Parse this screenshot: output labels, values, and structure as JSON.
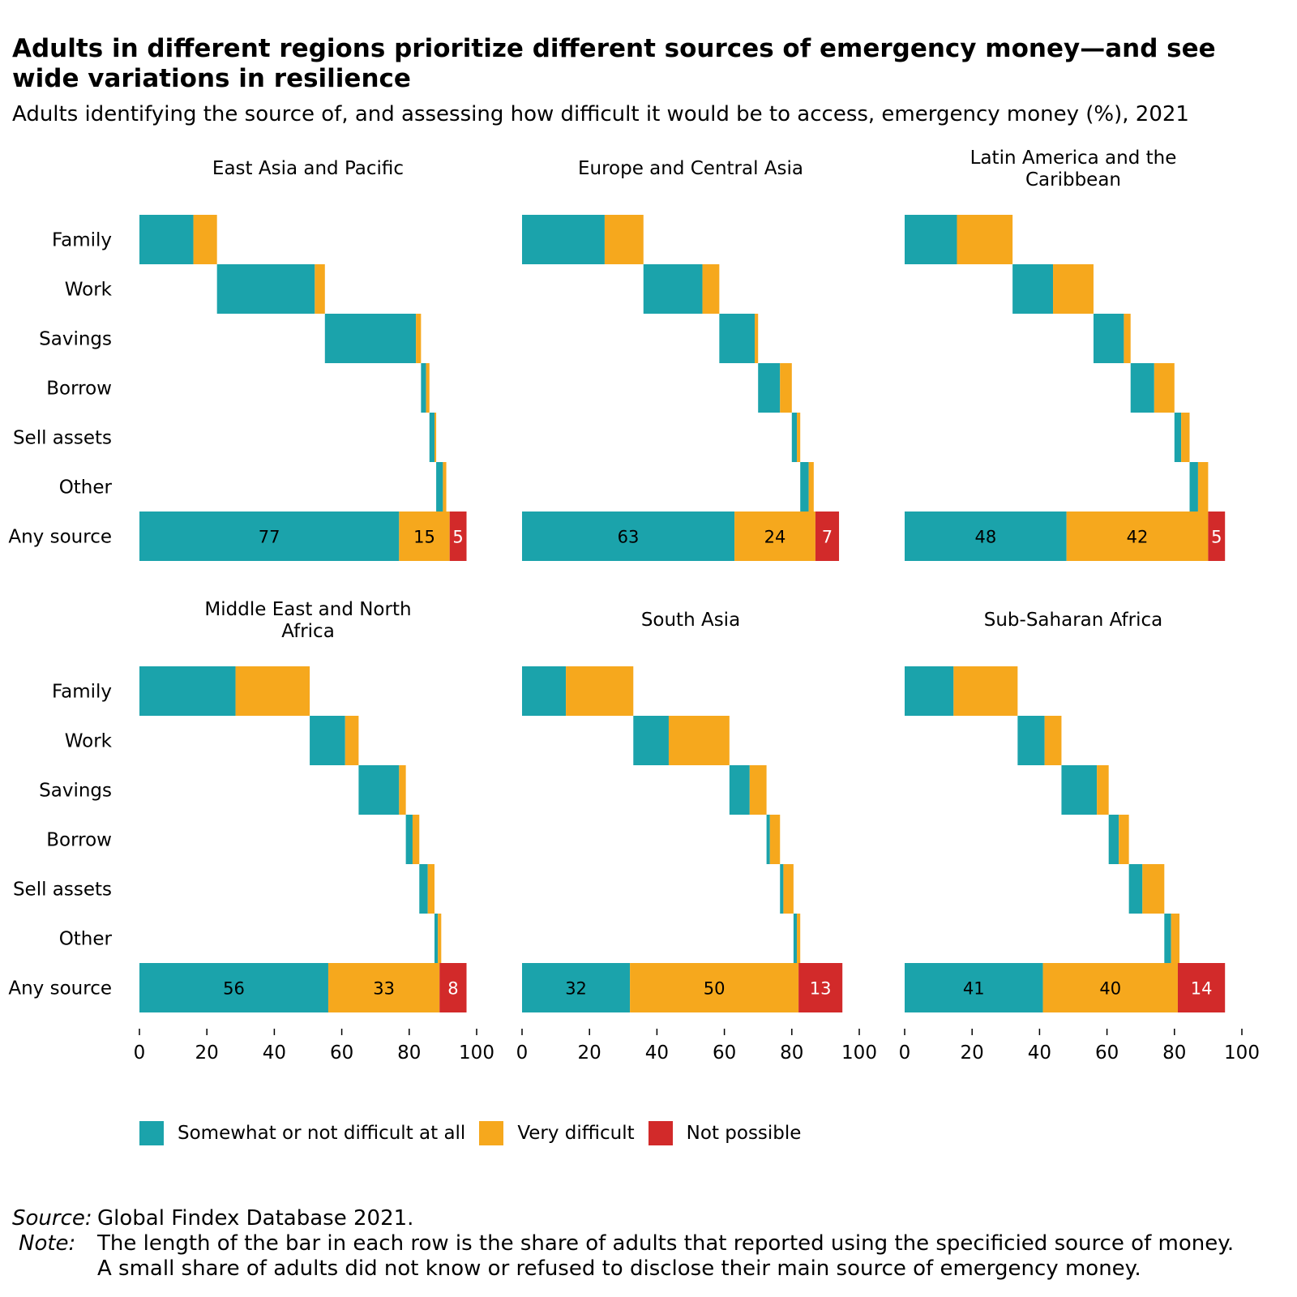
{
  "title": "Adults in different regions prioritize different sources of emergency money—and see wide variations in resilience",
  "subtitle": "Adults identifying the source of, and assessing how difficult it would be to access, emergency money (%), 2021",
  "legend": [
    {
      "label": "Somewhat or not difficult at all",
      "color": "#1ba3ab"
    },
    {
      "label": "Very difficult",
      "color": "#f6a81d"
    },
    {
      "label": "Not possible",
      "color": "#d22a2a"
    }
  ],
  "footer": {
    "source_label": "Source:",
    "source_text": "Global Findex Database 2021.",
    "note_label": "Note:",
    "note_lines": [
      "The length of the bar in each row is the share of adults that reported using the specificied source of money.",
      "A small share of adults did not know or refused to disclose their main source of emergency money."
    ]
  },
  "chart_data": {
    "type": "bar",
    "orientation": "horizontal",
    "stacking": "waterfall",
    "categories": [
      "Family",
      "Work",
      "Savings",
      "Borrow",
      "Sell assets",
      "Other",
      "Any source"
    ],
    "series_names": [
      "Somewhat or not difficult at all",
      "Very difficult",
      "Not possible"
    ],
    "xlim": [
      0,
      100
    ],
    "xticks": [
      0,
      20,
      40,
      60,
      80,
      100
    ],
    "grid": false,
    "legend_position": "bottom",
    "panels": [
      {
        "title": "East Asia and Pacific",
        "rows": [
          [
            16,
            7,
            0
          ],
          [
            29,
            3,
            0
          ],
          [
            27,
            1.5,
            0
          ],
          [
            1.5,
            1,
            0
          ],
          [
            1.5,
            0.5,
            0
          ],
          [
            2,
            1,
            0
          ],
          [
            77,
            15,
            5
          ]
        ],
        "labels": [
          "77",
          "15",
          "5"
        ]
      },
      {
        "title": "Europe and Central Asia",
        "rows": [
          [
            24.5,
            11.5,
            0
          ],
          [
            17.5,
            5,
            0
          ],
          [
            10.5,
            1,
            0
          ],
          [
            6.5,
            3.5,
            0
          ],
          [
            1.5,
            1,
            0
          ],
          [
            2.5,
            1.5,
            0
          ],
          [
            63,
            24,
            7
          ]
        ],
        "labels": [
          "63",
          "24",
          "7"
        ]
      },
      {
        "title": "Latin America and the Caribbean",
        "rows": [
          [
            15.5,
            16.5,
            0
          ],
          [
            12,
            12,
            0
          ],
          [
            9,
            2,
            0
          ],
          [
            7,
            6,
            0
          ],
          [
            2,
            2.5,
            0
          ],
          [
            2.5,
            3,
            0
          ],
          [
            48,
            42,
            5
          ]
        ],
        "labels": [
          "48",
          "42",
          "5"
        ]
      },
      {
        "title": "Middle East and North Africa",
        "rows": [
          [
            28.5,
            22,
            0
          ],
          [
            10.5,
            4,
            0
          ],
          [
            12,
            2,
            0
          ],
          [
            2,
            2,
            0
          ],
          [
            2.5,
            2,
            0
          ],
          [
            1,
            1,
            0
          ],
          [
            56,
            33,
            8
          ]
        ],
        "labels": [
          "56",
          "33",
          "8"
        ]
      },
      {
        "title": "South Asia",
        "rows": [
          [
            13,
            20,
            0
          ],
          [
            10.5,
            18,
            0
          ],
          [
            6,
            5,
            0
          ],
          [
            1,
            3,
            0
          ],
          [
            1,
            3,
            0
          ],
          [
            1,
            1,
            0
          ],
          [
            32,
            50,
            13
          ]
        ],
        "labels": [
          "32",
          "50",
          "13"
        ]
      },
      {
        "title": "Sub-Saharan Africa",
        "rows": [
          [
            14.5,
            19,
            0
          ],
          [
            8,
            5,
            0
          ],
          [
            10.5,
            3.5,
            0
          ],
          [
            3,
            3,
            0
          ],
          [
            4,
            6.5,
            0
          ],
          [
            2,
            2.5,
            0
          ],
          [
            41,
            40,
            14
          ]
        ],
        "labels": [
          "41",
          "40",
          "14"
        ]
      }
    ]
  }
}
